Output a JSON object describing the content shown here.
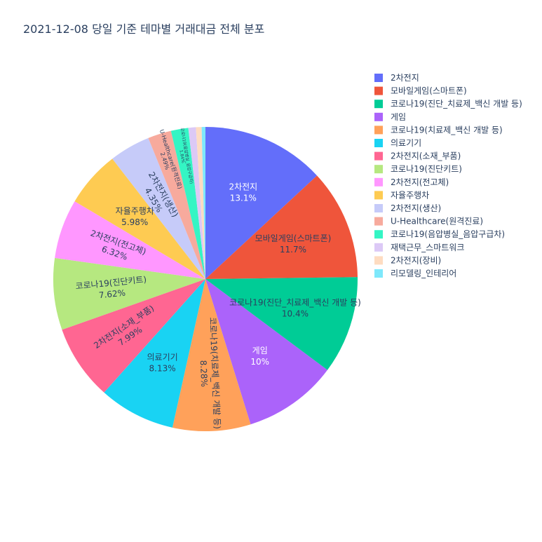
{
  "chart_data": {
    "type": "pie",
    "title": "2021-12-08 당일 기준 테마별 거래대금 전체 분포",
    "legend_position": "right",
    "slices": [
      {
        "label": "2차전지",
        "percent_label": "13.1%",
        "value": 13.1,
        "color": "#636efa",
        "text_color": "#ffffff"
      },
      {
        "label": "모바일게임(스마트폰)",
        "percent_label": "11.7%",
        "value": 11.7,
        "color": "#ef553b",
        "text_color": "#2a3f5f"
      },
      {
        "label": "코로나19(진단_치료제_백신 개발 등)",
        "percent_label": "10.4%",
        "value": 10.4,
        "color": "#00cc96",
        "text_color": "#2a3f5f"
      },
      {
        "label": "게임",
        "percent_label": "10%",
        "value": 10.0,
        "color": "#ab63fa",
        "text_color": "#ffffff"
      },
      {
        "label": "코로나19(치료제_백신 개발 등)",
        "percent_label": "8.28%",
        "value": 8.28,
        "color": "#ffa15a",
        "text_color": "#2a3f5f"
      },
      {
        "label": "의료기기",
        "percent_label": "8.13%",
        "value": 8.13,
        "color": "#19d3f3",
        "text_color": "#2a3f5f"
      },
      {
        "label": "2차전지(소재_부품)",
        "percent_label": "7.99%",
        "value": 7.99,
        "color": "#ff6692",
        "text_color": "#2a3f5f"
      },
      {
        "label": "코로나19(진단키트)",
        "percent_label": "7.62%",
        "value": 7.62,
        "color": "#b6e880",
        "text_color": "#2a3f5f"
      },
      {
        "label": "2차전지(전고체)",
        "percent_label": "6.32%",
        "value": 6.32,
        "color": "#ff97ff",
        "text_color": "#2a3f5f"
      },
      {
        "label": "자율주행차",
        "percent_label": "5.98%",
        "value": 5.98,
        "color": "#fecb52",
        "text_color": "#2a3f5f"
      },
      {
        "label": "2차전지(생산)",
        "percent_label": "4.35%",
        "value": 4.35,
        "color": "#c6cbf9",
        "text_color": "#2a3f5f"
      },
      {
        "label": "U-Healthcare(원격진료)",
        "percent_label": "2.49%",
        "value": 2.49,
        "color": "#f7aa9d",
        "text_color": "#2a3f5f"
      },
      {
        "label": "코로나19(음압병실_음압구급차)",
        "percent_label": "1.84%",
        "value": 1.84,
        "color": "#34f5c4",
        "text_color": "#2a3f5f"
      },
      {
        "label": "재택근무_스마트워크",
        "percent_label": "",
        "value": 0.8,
        "color": "#dcc9f6",
        "text_color": "#2a3f5f"
      },
      {
        "label": "2차전지(장비)",
        "percent_label": "",
        "value": 0.6,
        "color": "#fedcc1",
        "text_color": "#2a3f5f"
      },
      {
        "label": "리모델링_인테리어",
        "percent_label": "",
        "value": 0.4,
        "color": "#7ee8fb",
        "text_color": "#2a3f5f"
      }
    ]
  }
}
